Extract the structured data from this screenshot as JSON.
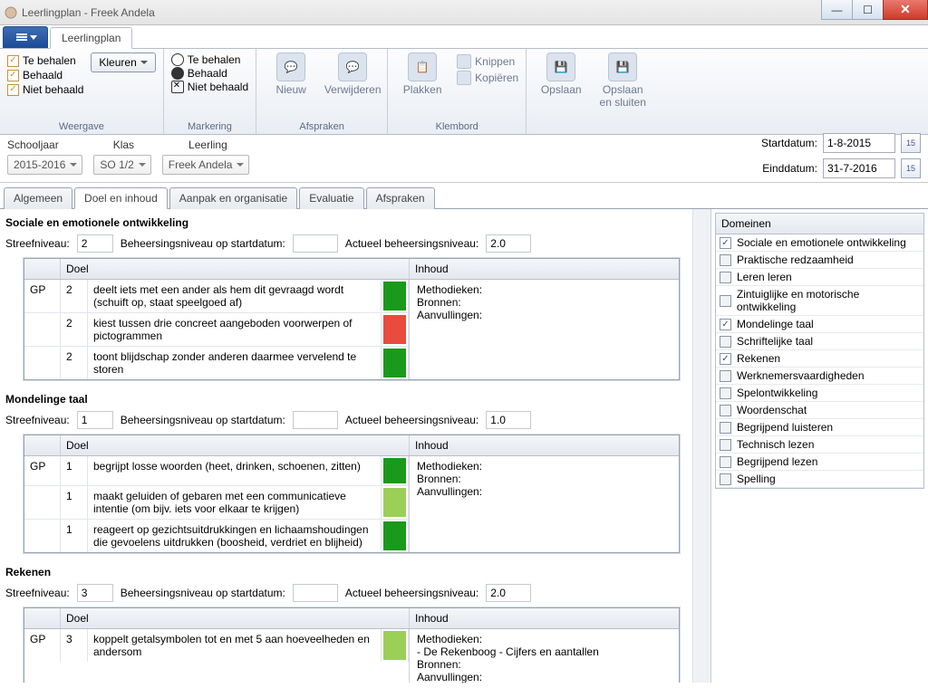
{
  "window": {
    "title": "Leerlingplan - Freek Andela"
  },
  "ribbon": {
    "tab": "Leerlingplan",
    "weergave": {
      "label": "Weergave",
      "te_behalen": "Te behalen",
      "behaald": "Behaald",
      "niet_behaald": "Niet behaald",
      "kleuren_btn": "Kleuren"
    },
    "markering": {
      "label": "Markering",
      "te_behalen": "Te behalen",
      "behaald": "Behaald",
      "niet_behaald": "Niet behaald"
    },
    "afspraken": {
      "label": "Afspraken",
      "nieuw": "Nieuw",
      "verwijderen": "Verwijderen"
    },
    "klembord": {
      "label": "Klembord",
      "plakken": "Plakken",
      "knippen": "Knippen",
      "kopieren": "Kopiëren"
    },
    "opslaan_group": {
      "label": "",
      "opslaan": "Opslaan",
      "opslaan_sluiten": "Opslaan en sluiten"
    }
  },
  "selectors": {
    "schooljaar_label": "Schooljaar",
    "klas_label": "Klas",
    "leerling_label": "Leerling",
    "schooljaar": "2015-2016",
    "klas": "SO 1/2",
    "leerling": "Freek Andela",
    "startdatum_label": "Startdatum:",
    "startdatum": "1-8-2015",
    "einddatum_label": "Einddatum:",
    "einddatum": "31-7-2016"
  },
  "tabs": [
    "Algemeen",
    "Doel en inhoud",
    "Aanpak en organisatie",
    "Evaluatie",
    "Afspraken"
  ],
  "active_tab": "Doel en inhoud",
  "labels": {
    "streefniveau": "Streefniveau:",
    "beheer_start": "Beheersingsniveau op startdatum:",
    "actueel": "Actueel beheersingsniveau:",
    "doel": "Doel",
    "inhoud": "Inhoud",
    "methodieken": "Methodieken:",
    "bronnen": "Bronnen:",
    "aanvullingen": "Aanvullingen:"
  },
  "colors": {
    "green_dark": "#1a9a1a",
    "green_light": "#9ccf57",
    "red": "#e74c3c"
  },
  "sections": [
    {
      "title": "Sociale en emotionele ontwikkeling",
      "streef": "2",
      "start": "",
      "actueel": "2.0",
      "gp": "GP",
      "goals": [
        {
          "lvl": "2",
          "desc": "deelt iets met een ander als hem dit gevraagd wordt (schuift op, staat speelgoed af)",
          "color": "#1a9a1a"
        },
        {
          "lvl": "2",
          "desc": "kiest tussen drie concreet aangeboden voorwerpen of pictogrammen",
          "color": "#e74c3c"
        },
        {
          "lvl": "2",
          "desc": "toont blijdschap zonder anderen daarmee vervelend te storen",
          "color": "#1a9a1a"
        }
      ],
      "inhoud_extra": ""
    },
    {
      "title": "Mondelinge taal",
      "streef": "1",
      "start": "",
      "actueel": "1.0",
      "gp": "GP",
      "goals": [
        {
          "lvl": "1",
          "desc": "begrijpt losse woorden (heet, drinken, schoenen, zitten)",
          "color": "#1a9a1a"
        },
        {
          "lvl": "1",
          "desc": "maakt geluiden of gebaren met een communicatieve intentie (om bijv. iets voor elkaar te krijgen)",
          "color": "#9ccf57"
        },
        {
          "lvl": "1",
          "desc": "reageert op gezichtsuitdrukkingen en lichaamshoudingen die gevoelens uitdrukken (boosheid, verdriet en blijheid)",
          "color": "#1a9a1a"
        }
      ],
      "inhoud_extra": ""
    },
    {
      "title": "Rekenen",
      "streef": "3",
      "start": "",
      "actueel": "2.0",
      "gp": "GP",
      "goals": [
        {
          "lvl": "3",
          "desc": "koppelt getalsymbolen tot en met 5 aan hoeveelheden en andersom",
          "color": "#9ccf57"
        }
      ],
      "inhoud_extra": "- De Rekenboog - Cijfers en aantallen"
    }
  ],
  "domains": {
    "header": "Domeinen",
    "items": [
      {
        "label": "Sociale en emotionele ontwikkeling",
        "checked": true
      },
      {
        "label": "Praktische redzaamheid",
        "checked": false
      },
      {
        "label": "Leren leren",
        "checked": false
      },
      {
        "label": "Zintuiglijke en motorische ontwikkeling",
        "checked": false
      },
      {
        "label": "Mondelinge taal",
        "checked": true
      },
      {
        "label": "Schriftelijke taal",
        "checked": false
      },
      {
        "label": "Rekenen",
        "checked": true
      },
      {
        "label": "Werknemersvaardigheden",
        "checked": false
      },
      {
        "label": "Spelontwikkeling",
        "checked": false
      },
      {
        "label": "Woordenschat",
        "checked": false
      },
      {
        "label": "Begrijpend luisteren",
        "checked": false
      },
      {
        "label": "Technisch lezen",
        "checked": false
      },
      {
        "label": "Begrijpend lezen",
        "checked": false
      },
      {
        "label": "Spelling",
        "checked": false
      }
    ]
  }
}
